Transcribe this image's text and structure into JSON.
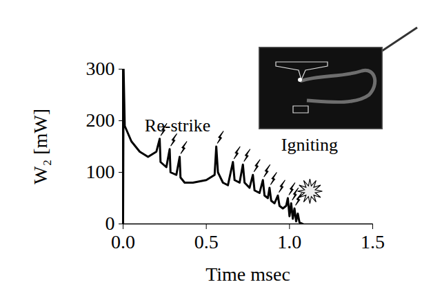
{
  "chart_data": {
    "type": "line",
    "x_label": "Time msec",
    "y_label": "W₂ [mW]",
    "color": "#000000",
    "xlim": [
      0,
      1.5
    ],
    "xticks": [
      {
        "value": 0,
        "label": "0.0"
      },
      {
        "value": 0.5,
        "label": "0.5"
      },
      {
        "value": 1,
        "label": "1.0"
      },
      {
        "value": 1.5,
        "label": "1.5"
      }
    ],
    "ylim": [
      0,
      300
    ],
    "yticks": [
      0,
      100,
      200,
      300
    ],
    "x": [
      0,
      0.003,
      0.01,
      0.05,
      0.1,
      0.15,
      0.2,
      0.22,
      0.225,
      0.26,
      0.28,
      0.285,
      0.32,
      0.34,
      0.345,
      0.37,
      0.42,
      0.5,
      0.55,
      0.56,
      0.57,
      0.6,
      0.63,
      0.66,
      0.67,
      0.7,
      0.72,
      0.73,
      0.76,
      0.78,
      0.79,
      0.82,
      0.84,
      0.85,
      0.87,
      0.88,
      0.89,
      0.91,
      0.93,
      0.94,
      0.96,
      0.98,
      0.99,
      1.0,
      1.01,
      1.02,
      1.03,
      1.04,
      1.05,
      1.06,
      1.08
    ],
    "values": [
      0,
      300,
      190,
      160,
      140,
      130,
      140,
      165,
      120,
      110,
      145,
      100,
      95,
      130,
      90,
      80,
      80,
      85,
      95,
      150,
      100,
      80,
      75,
      120,
      85,
      80,
      115,
      80,
      70,
      95,
      65,
      60,
      85,
      55,
      50,
      70,
      45,
      40,
      55,
      35,
      30,
      35,
      50,
      15,
      40,
      10,
      30,
      5,
      20,
      3,
      0
    ],
    "annotations": [
      {
        "text": "Re-strike",
        "x": 0.13,
        "y": 190
      },
      {
        "text": "Igniting",
        "x": 0.95,
        "y": 153
      }
    ]
  }
}
